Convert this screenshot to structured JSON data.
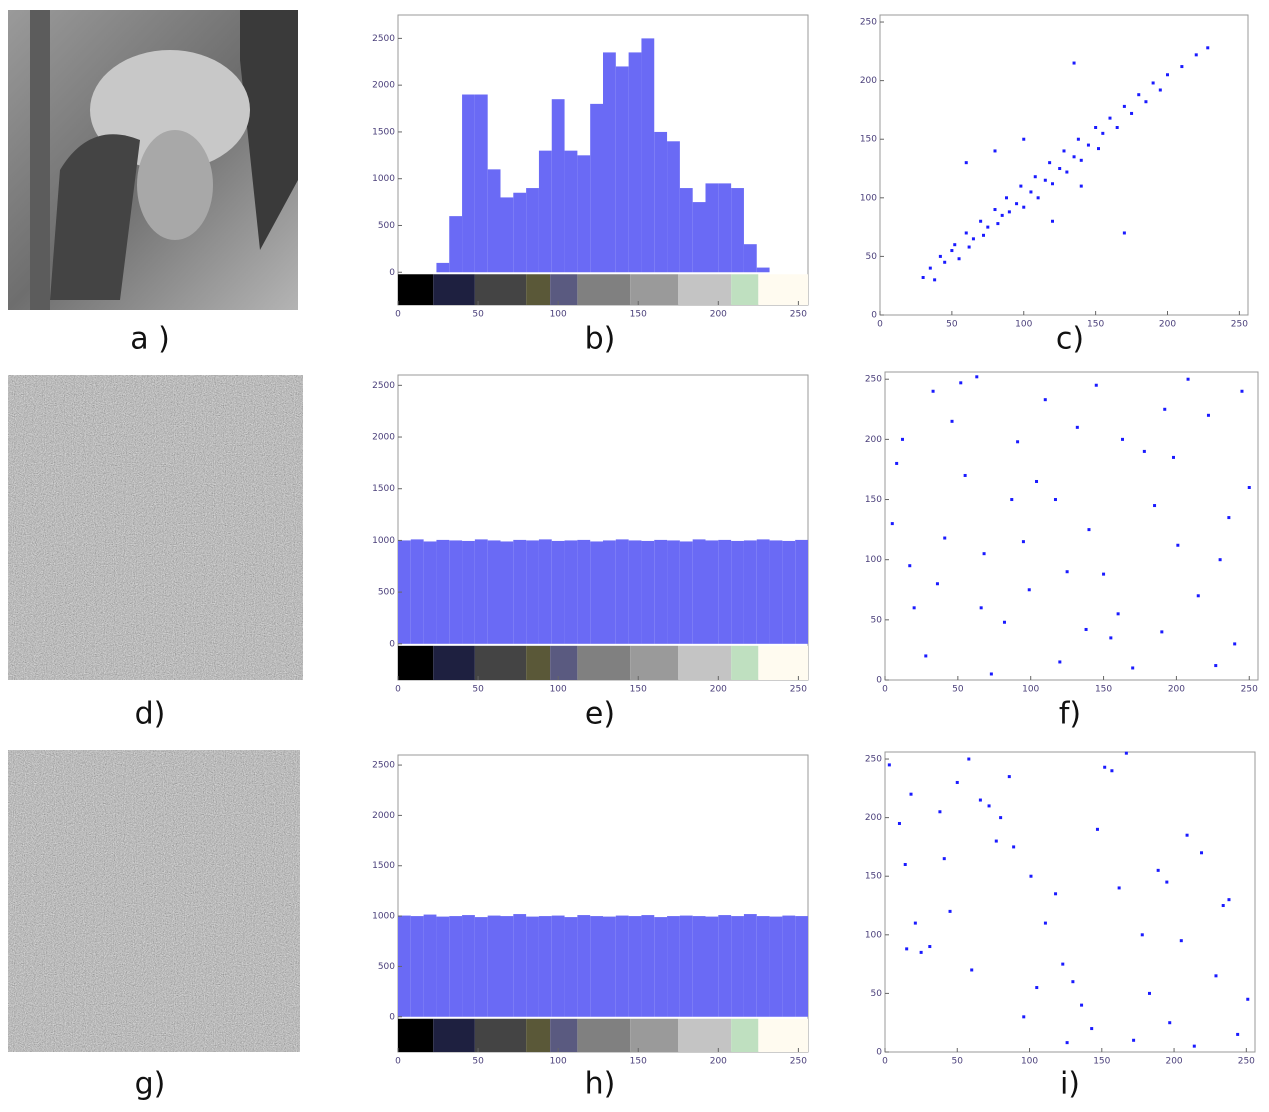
{
  "labels": [
    "a )",
    "b)",
    "c)",
    "d)",
    "e)",
    "f)",
    "g)",
    "h)",
    "i)"
  ],
  "chart_data": [
    {
      "type": "histogram",
      "color": "#6a6af5",
      "bins": [
        0,
        8,
        16,
        24,
        32,
        40,
        48,
        56,
        64,
        72,
        80,
        88,
        96,
        104,
        112,
        120,
        128,
        136,
        144,
        152,
        160,
        168,
        176,
        184,
        192,
        200,
        208,
        216,
        224,
        232,
        240,
        248,
        256
      ],
      "values": [
        0,
        0,
        0,
        100,
        600,
        1900,
        1900,
        1100,
        800,
        850,
        900,
        1300,
        1850,
        1300,
        1250,
        1800,
        2350,
        2200,
        2350,
        2500,
        1500,
        1400,
        900,
        750,
        950,
        950,
        900,
        300,
        50,
        0,
        0,
        0
      ],
      "xlim": [
        0,
        256
      ],
      "ylim": [
        -350,
        2750
      ],
      "xticks": [
        0,
        50,
        100,
        150,
        200,
        250
      ],
      "yticks": [
        0,
        500,
        1000,
        1500,
        2000,
        2500
      ],
      "colorbar_edges": [
        0,
        22,
        48,
        80,
        95,
        112,
        145,
        175,
        208,
        225,
        256
      ],
      "colorbar_colors": [
        "#000000",
        "#1e2040",
        "#444444",
        "#5a5838",
        "#5a5a80",
        "#808080",
        "#9a9a9a",
        "#c4c4c4",
        "#bfe0c0",
        "#fffbf0"
      ]
    },
    {
      "type": "scatter",
      "color": "#1a1aff",
      "x": [
        30,
        35,
        38,
        42,
        45,
        50,
        52,
        55,
        60,
        62,
        65,
        70,
        72,
        75,
        80,
        82,
        85,
        88,
        90,
        95,
        98,
        100,
        105,
        108,
        110,
        115,
        118,
        120,
        125,
        128,
        130,
        135,
        138,
        140,
        145,
        150,
        152,
        155,
        160,
        165,
        170,
        175,
        180,
        185,
        190,
        195,
        200,
        210,
        220,
        228,
        60,
        80,
        100,
        140,
        170,
        120,
        135
      ],
      "y": [
        32,
        40,
        30,
        50,
        45,
        55,
        60,
        48,
        70,
        58,
        65,
        80,
        68,
        75,
        90,
        78,
        85,
        100,
        88,
        95,
        110,
        92,
        105,
        118,
        100,
        115,
        130,
        112,
        125,
        140,
        122,
        135,
        150,
        132,
        145,
        160,
        142,
        155,
        168,
        160,
        178,
        172,
        188,
        182,
        198,
        192,
        205,
        212,
        222,
        228,
        130,
        140,
        150,
        110,
        70,
        80,
        215
      ],
      "xlim": [
        0,
        256
      ],
      "ylim": [
        0,
        256
      ],
      "xticks": [
        0,
        50,
        100,
        150,
        200,
        250
      ],
      "yticks": [
        0,
        50,
        100,
        150,
        200,
        250
      ]
    },
    {
      "type": "histogram",
      "color": "#6a6af5",
      "bins": [
        0,
        8,
        16,
        24,
        32,
        40,
        48,
        56,
        64,
        72,
        80,
        88,
        96,
        104,
        112,
        120,
        128,
        136,
        144,
        152,
        160,
        168,
        176,
        184,
        192,
        200,
        208,
        216,
        224,
        232,
        240,
        248,
        256
      ],
      "values": [
        1000,
        1010,
        990,
        1005,
        1000,
        995,
        1010,
        1000,
        990,
        1005,
        1000,
        1010,
        995,
        1000,
        1005,
        990,
        1000,
        1010,
        1000,
        995,
        1005,
        1000,
        990,
        1010,
        1000,
        1005,
        995,
        1000,
        1010,
        1000,
        995,
        1005
      ],
      "xlim": [
        0,
        256
      ],
      "ylim": [
        -350,
        2600
      ],
      "xticks": [
        0,
        50,
        100,
        150,
        200,
        250
      ],
      "yticks": [
        0,
        500,
        1000,
        1500,
        2000,
        2500
      ],
      "colorbar_edges": [
        0,
        22,
        48,
        80,
        95,
        112,
        145,
        175,
        208,
        225,
        256
      ],
      "colorbar_colors": [
        "#000000",
        "#1e2040",
        "#444444",
        "#5a5838",
        "#5a5a80",
        "#808080",
        "#9a9a9a",
        "#c4c4c4",
        "#bfe0c0",
        "#fffbf0"
      ]
    },
    {
      "type": "scatter",
      "color": "#1a1aff",
      "x": [
        12,
        240,
        87,
        150,
        33,
        201,
        66,
        178,
        120,
        5,
        222,
        99,
        145,
        55,
        190,
        17,
        250,
        73,
        132,
        208,
        41,
        160,
        110,
        230,
        28,
        185,
        91,
        63,
        215,
        140,
        8,
        170,
        125,
        46,
        198,
        82,
        236,
        104,
        155,
        20,
        245,
        68,
        117,
        192,
        36,
        163,
        227,
        95,
        138,
        52
      ],
      "y": [
        200,
        30,
        150,
        88,
        240,
        112,
        60,
        190,
        15,
        130,
        220,
        75,
        245,
        170,
        40,
        95,
        160,
        5,
        210,
        250,
        118,
        55,
        233,
        100,
        20,
        145,
        198,
        252,
        70,
        125,
        180,
        10,
        90,
        215,
        185,
        48,
        135,
        165,
        35,
        60,
        240,
        105,
        150,
        225,
        80,
        200,
        12,
        115,
        42,
        247
      ],
      "xlim": [
        0,
        256
      ],
      "ylim": [
        0,
        256
      ],
      "xticks": [
        0,
        50,
        100,
        150,
        200,
        250
      ],
      "yticks": [
        0,
        50,
        100,
        150,
        200,
        250
      ]
    },
    {
      "type": "histogram",
      "color": "#6a6af5",
      "bins": [
        0,
        8,
        16,
        24,
        32,
        40,
        48,
        56,
        64,
        72,
        80,
        88,
        96,
        104,
        112,
        120,
        128,
        136,
        144,
        152,
        160,
        168,
        176,
        184,
        192,
        200,
        208,
        216,
        224,
        232,
        240,
        248,
        256
      ],
      "values": [
        1005,
        1000,
        1015,
        995,
        1000,
        1010,
        990,
        1005,
        1000,
        1020,
        995,
        1000,
        1005,
        990,
        1010,
        1000,
        995,
        1005,
        1000,
        1010,
        990,
        1000,
        1005,
        1000,
        995,
        1010,
        1000,
        1020,
        1000,
        995,
        1005,
        1000
      ],
      "xlim": [
        0,
        256
      ],
      "ylim": [
        -350,
        2600
      ],
      "xticks": [
        0,
        50,
        100,
        150,
        200,
        250
      ],
      "yticks": [
        0,
        500,
        1000,
        1500,
        2000,
        2500
      ],
      "colorbar_edges": [
        0,
        22,
        48,
        80,
        95,
        112,
        145,
        175,
        208,
        225,
        256
      ],
      "colorbar_colors": [
        "#000000",
        "#1e2040",
        "#444444",
        "#5a5838",
        "#5a5a80",
        "#808080",
        "#9a9a9a",
        "#c4c4c4",
        "#bfe0c0",
        "#fffbf0"
      ]
    },
    {
      "type": "scatter",
      "color": "#1a1aff",
      "x": [
        244,
        18,
        130,
        77,
        205,
        3,
        162,
        96,
        38,
        219,
        111,
        58,
        183,
        147,
        25,
        238,
        86,
        172,
        14,
        123,
        66,
        197,
        45,
        152,
        229,
        101,
        10,
        178,
        136,
        50,
        214,
        89,
        31,
        167,
        118,
        251,
        72,
        189,
        143,
        21,
        209,
        60,
        157,
        105,
        234,
        41,
        126,
        80,
        195,
        15
      ],
      "y": [
        15,
        220,
        60,
        180,
        95,
        245,
        140,
        30,
        205,
        170,
        110,
        250,
        50,
        190,
        85,
        130,
        235,
        10,
        160,
        75,
        215,
        25,
        120,
        243,
        65,
        150,
        195,
        100,
        40,
        230,
        5,
        175,
        90,
        255,
        135,
        45,
        210,
        155,
        20,
        110,
        185,
        70,
        240,
        55,
        125,
        165,
        8,
        200,
        145,
        88
      ],
      "xlim": [
        0,
        256
      ],
      "ylim": [
        0,
        256
      ],
      "xticks": [
        0,
        50,
        100,
        150,
        200,
        250
      ],
      "yticks": [
        0,
        50,
        100,
        150,
        200,
        250
      ]
    }
  ]
}
